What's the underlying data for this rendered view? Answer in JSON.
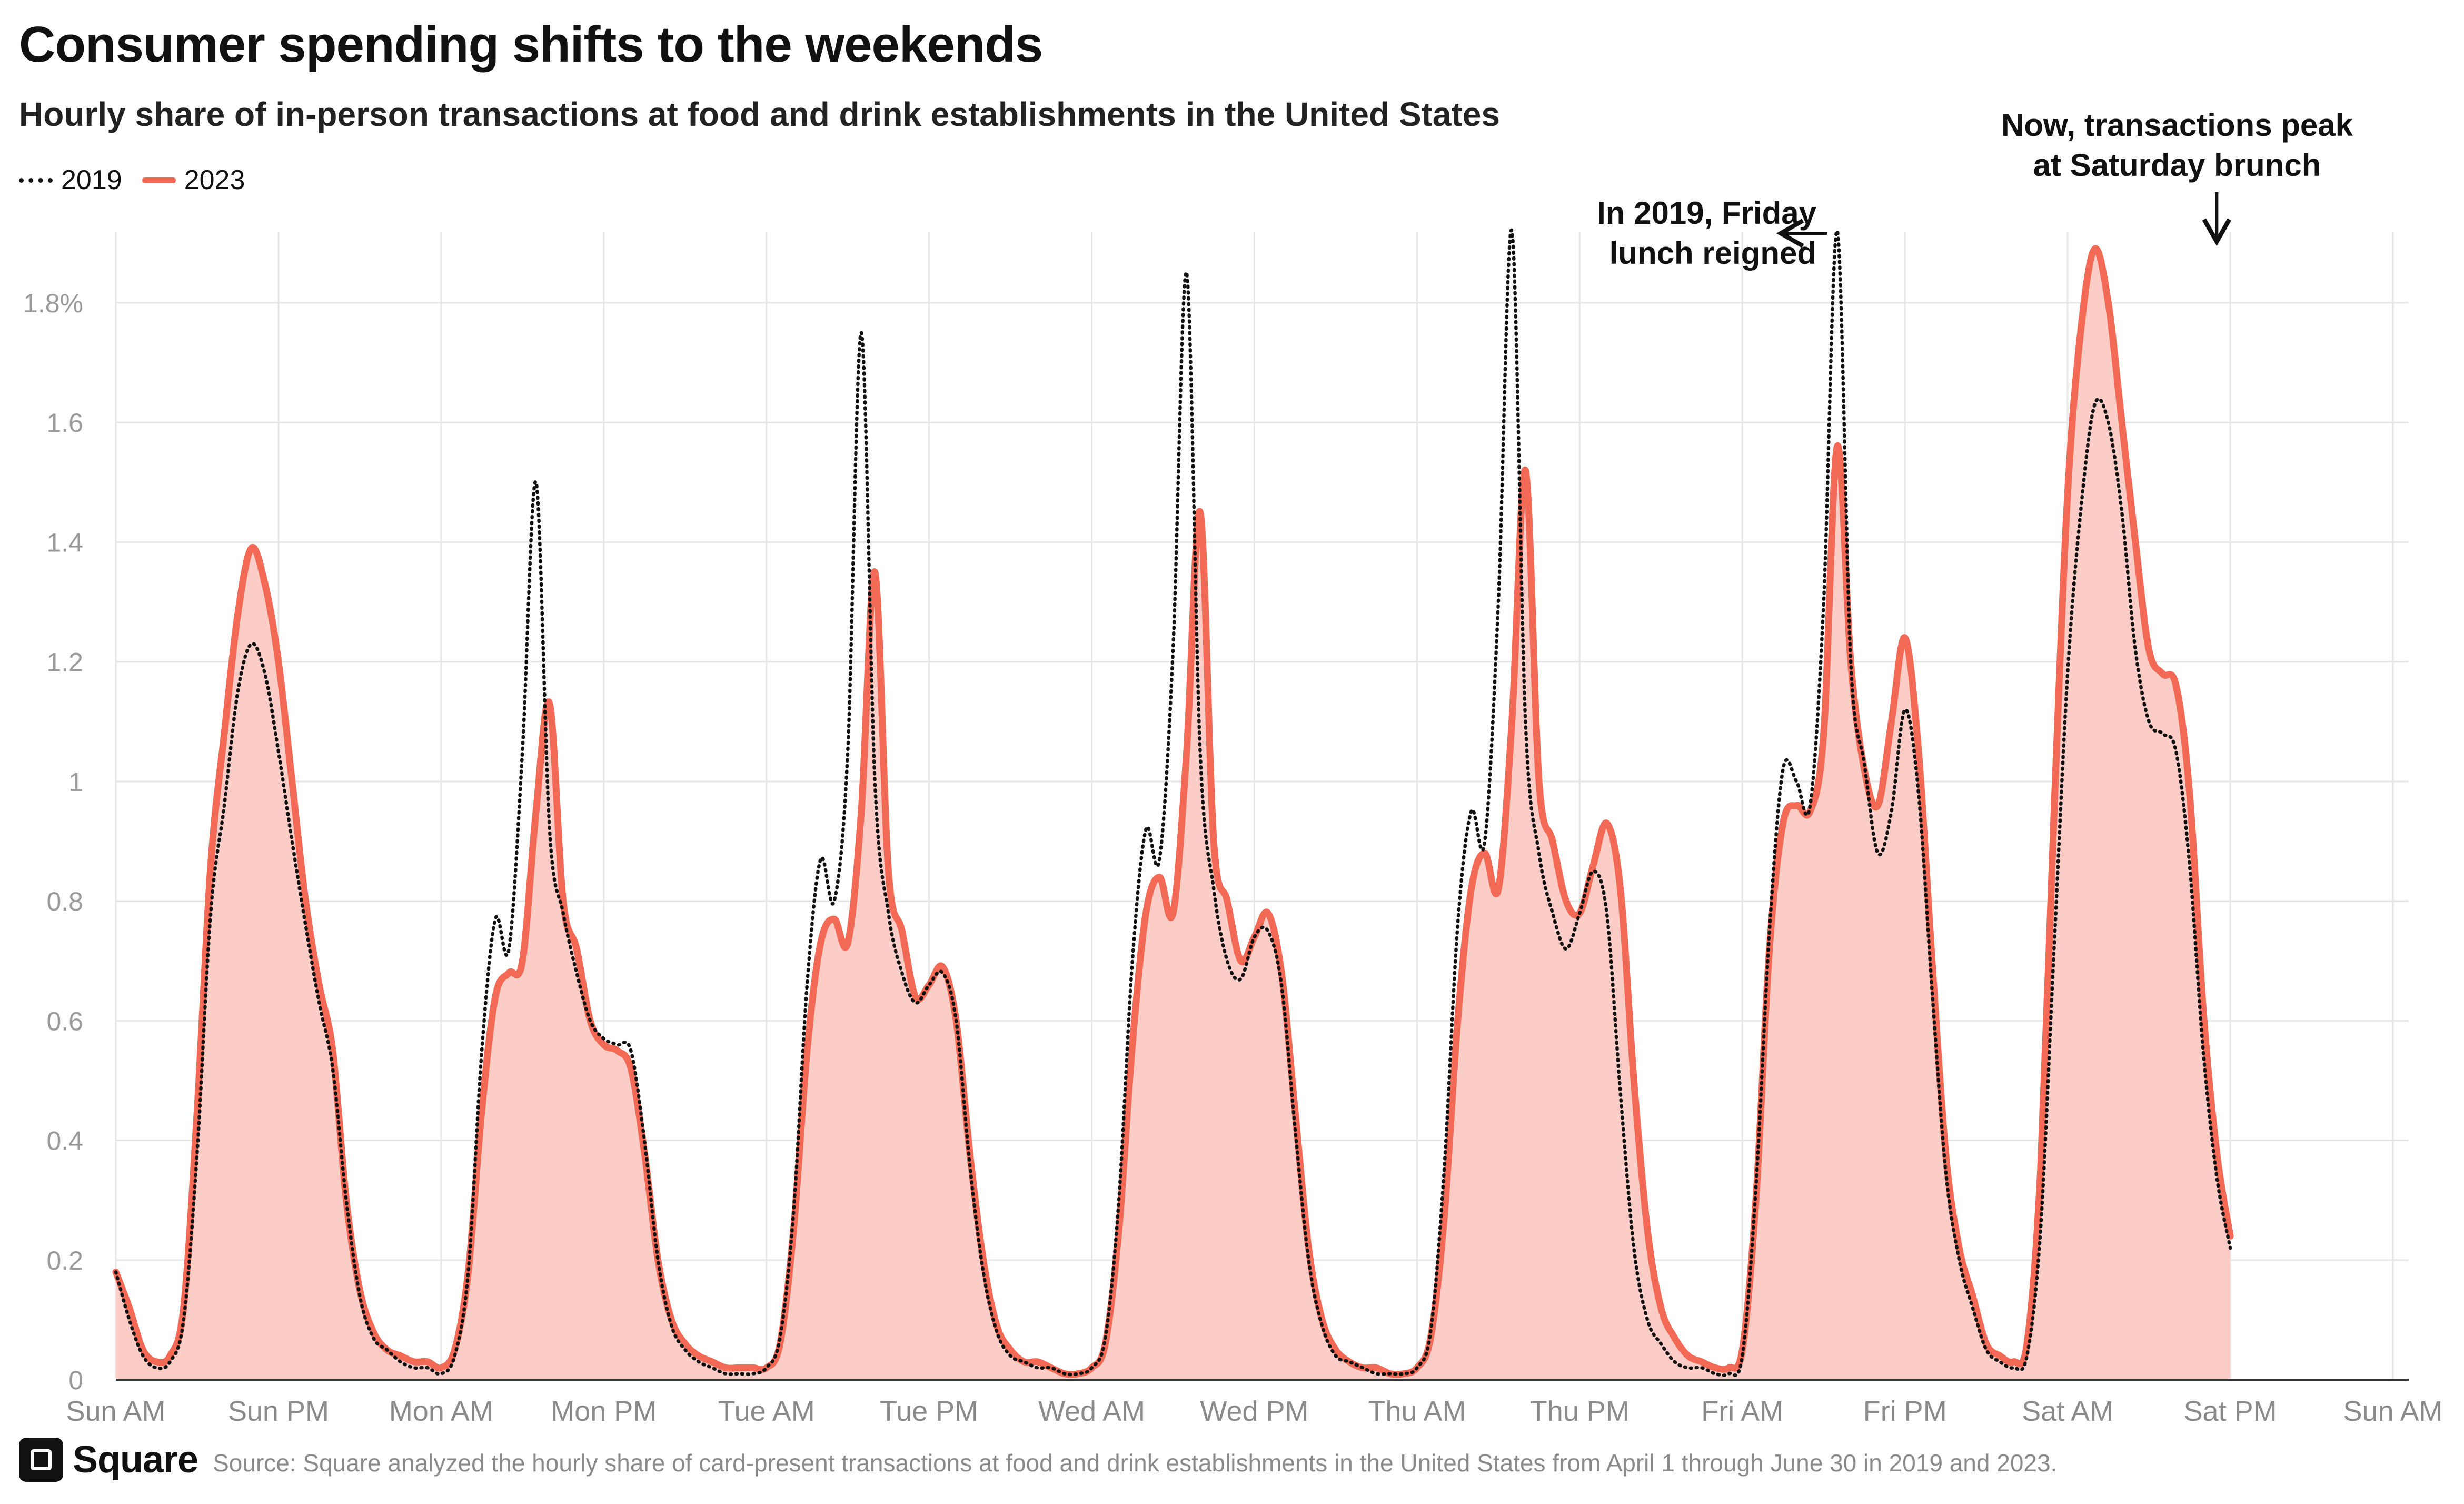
{
  "header": {
    "title": "Consumer spending shifts to the weekends",
    "subtitle": "Hourly share of in-person transactions at food and drink establishments in the United States"
  },
  "legend": {
    "items": [
      {
        "label": "2019",
        "style": "dotted",
        "color": "#111111"
      },
      {
        "label": "2023",
        "style": "solid",
        "color": "#f26a55"
      }
    ]
  },
  "colors": {
    "line_2023": "#f26a55",
    "fill_2023": "#fccdc7",
    "line_2019": "#111111",
    "grid": "#e6e6e6"
  },
  "annotations": [
    {
      "lines": [
        "In 2019, Friday",
        "lunch reigned"
      ],
      "x": 124,
      "y": 1.92,
      "arrow": "right"
    },
    {
      "lines": [
        "Now,  transactions peak",
        "at Saturday brunch"
      ],
      "x": 155,
      "y": 1.89,
      "arrow": "down"
    }
  ],
  "footer": {
    "brand": "Square",
    "source": "Source: Square analyzed the hourly share of card-present transactions at food and drink establishments in the United States from April 1 through June 30 in 2019 and 2023."
  },
  "chart_data": {
    "type": "area",
    "x_unit": "hours since Sunday 12 AM",
    "xlim": [
      0,
      168
    ],
    "ylim": [
      0,
      1.9
    ],
    "y_ticks": [
      {
        "v": 0,
        "label": "0"
      },
      {
        "v": 0.2,
        "label": "0.2"
      },
      {
        "v": 0.4,
        "label": "0.4"
      },
      {
        "v": 0.6,
        "label": "0.6"
      },
      {
        "v": 0.8,
        "label": "0.8"
      },
      {
        "v": 1.0,
        "label": "1"
      },
      {
        "v": 1.2,
        "label": "1.2"
      },
      {
        "v": 1.4,
        "label": "1.4"
      },
      {
        "v": 1.6,
        "label": "1.6"
      },
      {
        "v": 1.8,
        "label": "1.8%"
      }
    ],
    "x_ticks": [
      {
        "v": 0,
        "label": "Sun AM"
      },
      {
        "v": 12,
        "label": "Sun PM"
      },
      {
        "v": 24,
        "label": "Mon AM"
      },
      {
        "v": 36,
        "label": "Mon PM"
      },
      {
        "v": 48,
        "label": "Tue AM"
      },
      {
        "v": 60,
        "label": "Tue PM"
      },
      {
        "v": 72,
        "label": "Wed AM"
      },
      {
        "v": 84,
        "label": "Wed PM"
      },
      {
        "v": 96,
        "label": "Thu AM"
      },
      {
        "v": 108,
        "label": "Thu PM"
      },
      {
        "v": 120,
        "label": "Fri AM"
      },
      {
        "v": 132,
        "label": "Fri PM"
      },
      {
        "v": 144,
        "label": "Sat AM"
      },
      {
        "v": 156,
        "label": "Sat PM"
      },
      {
        "v": 168,
        "label": "Sun AM"
      }
    ],
    "grid": true,
    "legend_position": "top-left",
    "series": [
      {
        "name": "2023",
        "style": "solid-with-area",
        "values": [
          0.18,
          0.12,
          0.05,
          0.03,
          0.04,
          0.12,
          0.45,
          0.86,
          1.08,
          1.28,
          1.39,
          1.33,
          1.2,
          1.0,
          0.8,
          0.66,
          0.55,
          0.3,
          0.15,
          0.08,
          0.05,
          0.04,
          0.03,
          0.03,
          0.02,
          0.05,
          0.18,
          0.45,
          0.64,
          0.68,
          0.7,
          0.95,
          1.13,
          0.8,
          0.72,
          0.6,
          0.56,
          0.55,
          0.52,
          0.38,
          0.2,
          0.1,
          0.06,
          0.04,
          0.03,
          0.02,
          0.02,
          0.02,
          0.02,
          0.06,
          0.25,
          0.55,
          0.73,
          0.77,
          0.73,
          0.95,
          1.35,
          0.85,
          0.75,
          0.64,
          0.66,
          0.69,
          0.6,
          0.38,
          0.2,
          0.09,
          0.05,
          0.03,
          0.03,
          0.02,
          0.01,
          0.01,
          0.02,
          0.06,
          0.25,
          0.56,
          0.78,
          0.84,
          0.78,
          1.05,
          1.45,
          0.9,
          0.8,
          0.7,
          0.74,
          0.78,
          0.68,
          0.45,
          0.22,
          0.1,
          0.05,
          0.03,
          0.02,
          0.02,
          0.01,
          0.01,
          0.02,
          0.07,
          0.27,
          0.6,
          0.82,
          0.88,
          0.82,
          1.1,
          1.52,
          1.0,
          0.9,
          0.8,
          0.78,
          0.86,
          0.93,
          0.82,
          0.5,
          0.25,
          0.12,
          0.07,
          0.04,
          0.03,
          0.02,
          0.02,
          0.05,
          0.3,
          0.72,
          0.93,
          0.96,
          0.95,
          1.08,
          1.56,
          1.2,
          1.02,
          0.96,
          1.1,
          1.24,
          1.05,
          0.7,
          0.38,
          0.22,
          0.14,
          0.06,
          0.04,
          0.03,
          0.06,
          0.35,
          0.95,
          1.48,
          1.76,
          1.89,
          1.8,
          1.6,
          1.4,
          1.22,
          1.18,
          1.16,
          0.98,
          0.62,
          0.38,
          0.24
        ]
      },
      {
        "name": "2019",
        "style": "dotted",
        "values": [
          0.18,
          0.1,
          0.04,
          0.02,
          0.03,
          0.1,
          0.38,
          0.78,
          0.96,
          1.15,
          1.23,
          1.18,
          1.05,
          0.9,
          0.76,
          0.63,
          0.52,
          0.3,
          0.14,
          0.07,
          0.05,
          0.03,
          0.02,
          0.02,
          0.01,
          0.04,
          0.18,
          0.55,
          0.77,
          0.72,
          1.05,
          1.5,
          0.92,
          0.78,
          0.68,
          0.6,
          0.57,
          0.56,
          0.55,
          0.4,
          0.2,
          0.09,
          0.05,
          0.03,
          0.02,
          0.01,
          0.01,
          0.01,
          0.02,
          0.07,
          0.28,
          0.66,
          0.87,
          0.8,
          1.05,
          1.75,
          1.0,
          0.78,
          0.68,
          0.63,
          0.66,
          0.68,
          0.6,
          0.36,
          0.18,
          0.08,
          0.04,
          0.03,
          0.02,
          0.02,
          0.01,
          0.01,
          0.02,
          0.07,
          0.3,
          0.7,
          0.92,
          0.87,
          1.22,
          1.85,
          1.05,
          0.82,
          0.7,
          0.67,
          0.74,
          0.75,
          0.66,
          0.42,
          0.2,
          0.09,
          0.04,
          0.03,
          0.02,
          0.01,
          0.01,
          0.01,
          0.02,
          0.08,
          0.35,
          0.76,
          0.95,
          0.9,
          1.3,
          1.92,
          1.1,
          0.88,
          0.78,
          0.72,
          0.78,
          0.85,
          0.78,
          0.48,
          0.22,
          0.1,
          0.06,
          0.03,
          0.02,
          0.02,
          0.01,
          0.01,
          0.04,
          0.32,
          0.75,
          1.02,
          1.0,
          0.96,
          1.3,
          1.92,
          1.2,
          1.03,
          0.88,
          0.95,
          1.12,
          0.98,
          0.65,
          0.35,
          0.2,
          0.12,
          0.05,
          0.03,
          0.02,
          0.04,
          0.25,
          0.72,
          1.18,
          1.46,
          1.63,
          1.6,
          1.45,
          1.22,
          1.1,
          1.08,
          1.05,
          0.86,
          0.55,
          0.34,
          0.22
        ]
      }
    ]
  }
}
